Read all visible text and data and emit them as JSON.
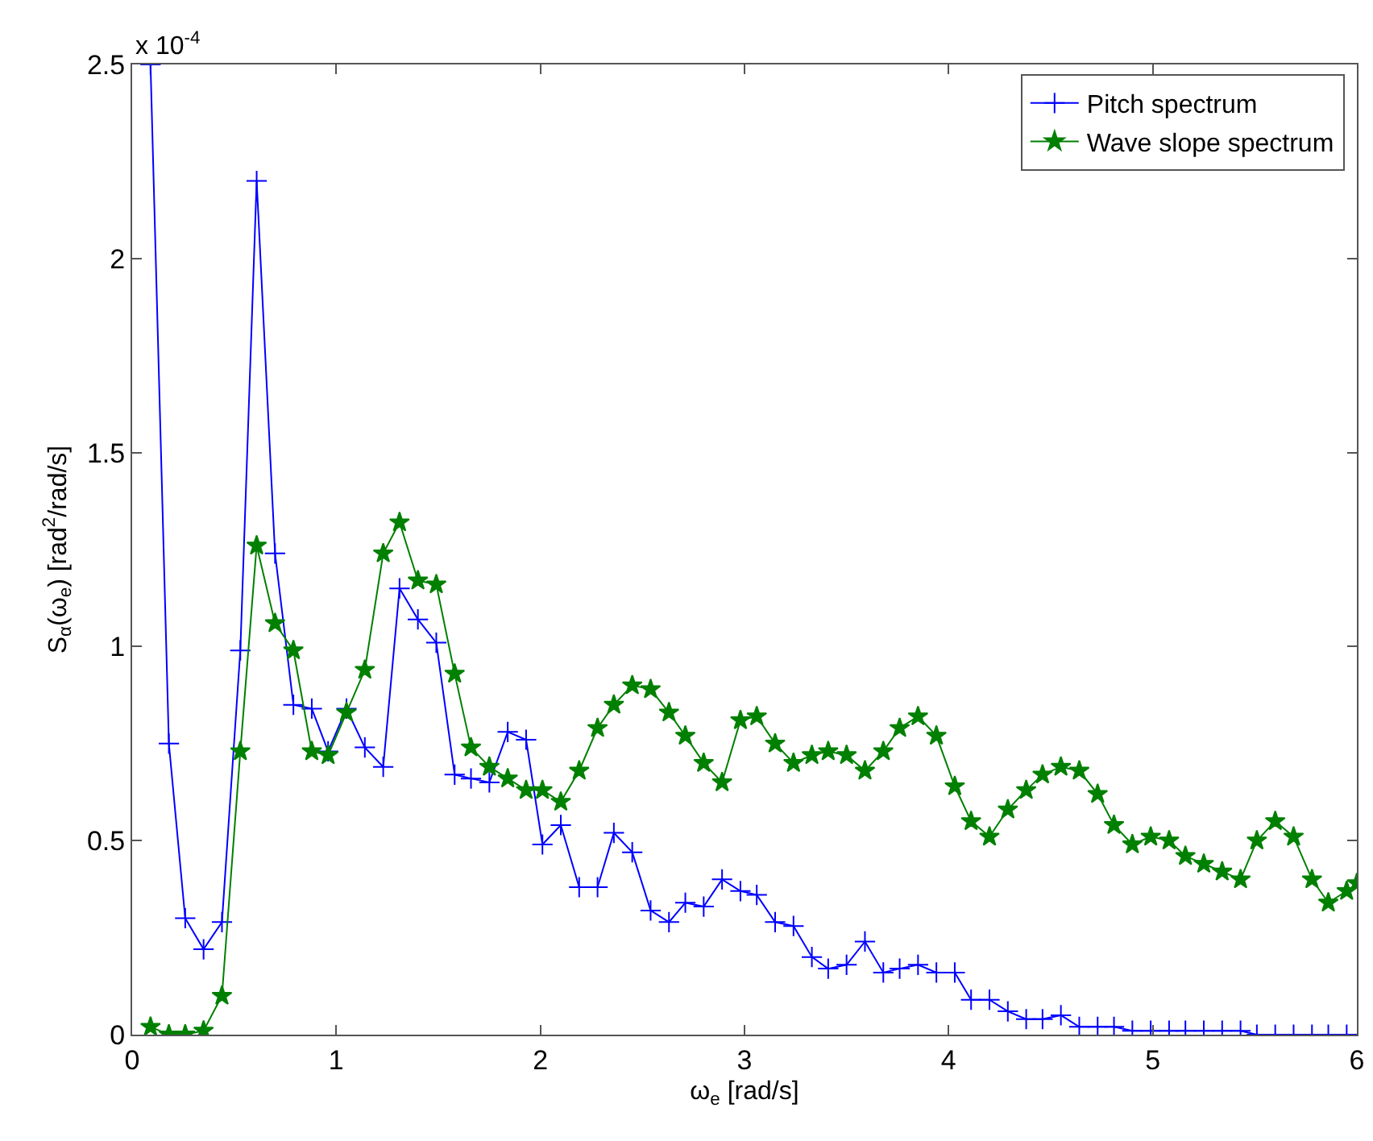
{
  "chart_data": {
    "type": "line",
    "xlabel": "ω$_{e}$ [rad/s]",
    "ylabel": "S$_{α}$(ω$_{e}$) [rad$^{2}$/rad/s]",
    "annotations": [
      "x 10$^{-4}$"
    ],
    "x": [
      0.09,
      0.18,
      0.26,
      0.35,
      0.44,
      0.53,
      0.61,
      0.7,
      0.79,
      0.88,
      0.96,
      1.05,
      1.14,
      1.23,
      1.31,
      1.4,
      1.49,
      1.58,
      1.66,
      1.75,
      1.84,
      1.93,
      2.01,
      2.1,
      2.19,
      2.28,
      2.36,
      2.45,
      2.54,
      2.63,
      2.71,
      2.8,
      2.89,
      2.98,
      3.06,
      3.15,
      3.24,
      3.33,
      3.41,
      3.5,
      3.59,
      3.68,
      3.76,
      3.85,
      3.94,
      4.03,
      4.11,
      4.2,
      4.29,
      4.38,
      4.46,
      4.55,
      4.64,
      4.73,
      4.81,
      4.9,
      4.99,
      5.08,
      5.16,
      5.25,
      5.34,
      5.43,
      5.51,
      5.6,
      5.69,
      5.78,
      5.86,
      5.95
    ],
    "series": [
      {
        "name": "Pitch spectrum",
        "color": "#0000ff",
        "marker": "cross",
        "values": [
          2.5,
          0.75,
          0.3,
          0.22,
          0.29,
          0.99,
          2.2,
          1.24,
          0.85,
          0.84,
          0.73,
          0.84,
          0.74,
          0.69,
          1.15,
          1.07,
          1.01,
          0.67,
          0.66,
          0.65,
          0.78,
          0.76,
          0.49,
          0.54,
          0.38,
          0.38,
          0.52,
          0.47,
          0.32,
          0.29,
          0.34,
          0.33,
          0.4,
          0.37,
          0.36,
          0.29,
          0.28,
          0.2,
          0.17,
          0.18,
          0.24,
          0.16,
          0.17,
          0.18,
          0.16,
          0.16,
          0.09,
          0.09,
          0.06,
          0.04,
          0.04,
          0.05,
          0.02,
          0.02,
          0.02,
          0.01,
          0.01,
          0.01,
          0.01,
          0.01,
          0.01,
          0.01,
          0,
          0,
          0,
          0,
          0,
          0
        ]
      },
      {
        "name": "Wave slope spectrum",
        "color": "#008000",
        "marker": "star",
        "x": [
          0.09,
          0.18,
          0.26,
          0.35,
          0.44,
          0.53,
          0.61,
          0.7,
          0.79,
          0.88,
          0.96,
          1.05,
          1.14,
          1.23,
          1.31,
          1.4,
          1.49,
          1.58,
          1.66,
          1.75,
          1.84,
          1.93,
          2.01,
          2.1,
          2.19,
          2.28,
          2.36,
          2.45,
          2.54,
          2.63,
          2.71,
          2.8,
          2.89,
          2.98,
          3.06,
          3.15,
          3.24,
          3.33,
          3.41,
          3.5,
          3.59,
          3.68,
          3.76,
          3.85,
          3.94,
          4.03,
          4.11,
          4.2,
          4.29,
          4.38,
          4.46,
          4.55,
          4.64,
          4.73,
          4.81,
          4.9,
          4.99,
          5.08,
          5.16,
          5.25,
          5.34,
          5.43,
          5.51,
          5.6,
          5.69,
          5.78,
          5.86,
          5.95,
          6.0
        ],
        "values": [
          0.02,
          0.0,
          0.0,
          0.01,
          0.1,
          0.73,
          1.26,
          1.06,
          0.99,
          0.73,
          0.72,
          0.83,
          0.94,
          1.24,
          1.32,
          1.17,
          1.16,
          0.93,
          0.74,
          0.69,
          0.66,
          0.63,
          0.63,
          0.6,
          0.68,
          0.79,
          0.85,
          0.9,
          0.89,
          0.83,
          0.77,
          0.7,
          0.65,
          0.81,
          0.82,
          0.75,
          0.7,
          0.72,
          0.73,
          0.72,
          0.68,
          0.73,
          0.79,
          0.82,
          0.77,
          0.64,
          0.55,
          0.51,
          0.58,
          0.63,
          0.67,
          0.69,
          0.68,
          0.62,
          0.54,
          0.49,
          0.51,
          0.5,
          0.46,
          0.44,
          0.42,
          0.4,
          0.5,
          0.55,
          0.51,
          0.4,
          0.34,
          0.37,
          0.39
        ]
      }
    ],
    "xlim": [
      0,
      6
    ],
    "xticks": [
      0,
      1,
      2,
      3,
      4,
      5,
      6
    ],
    "ylim": [
      0,
      2.5
    ],
    "yticks": [
      0,
      0.5,
      1,
      1.5,
      2,
      2.5
    ],
    "grid": false,
    "legend": "top right",
    "line_style": "solid"
  }
}
